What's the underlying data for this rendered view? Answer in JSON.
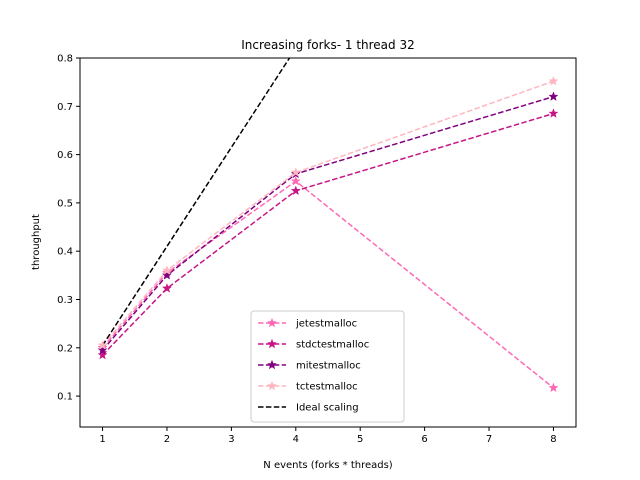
{
  "chart_data": {
    "type": "line",
    "title": "Increasing forks- 1 thread 32",
    "xlabel": "N events (forks * threads)",
    "ylabel": "throughput",
    "xlim": [
      0.65,
      8.35
    ],
    "ylim": [
      0.036,
      0.8
    ],
    "xticks": [
      1,
      2,
      3,
      4,
      5,
      6,
      7,
      8
    ],
    "yticks": [
      0.1,
      0.2,
      0.3,
      0.4,
      0.5,
      0.6,
      0.7,
      0.8
    ],
    "grid": false,
    "legend_position": "lower-center",
    "x": [
      1,
      2,
      4,
      8
    ],
    "series": [
      {
        "name": "jetestmalloc",
        "color": "#ff69b4",
        "marker": "star",
        "linestyle": "dashed",
        "values": [
          0.2,
          0.355,
          0.545,
          0.117
        ]
      },
      {
        "name": "stdctestmalloc",
        "color": "#c71585",
        "marker": "star",
        "linestyle": "dashed",
        "values": [
          0.185,
          0.323,
          0.525,
          0.685
        ]
      },
      {
        "name": "mitestmalloc",
        "color": "#800080",
        "marker": "star",
        "linestyle": "dashed",
        "values": [
          0.195,
          0.35,
          0.56,
          0.72
        ]
      },
      {
        "name": "tctestmalloc",
        "color": "#ffb6c1",
        "marker": "star",
        "linestyle": "dashed",
        "values": [
          0.205,
          0.36,
          0.563,
          0.752
        ]
      },
      {
        "name": "Ideal scaling",
        "color": "#000000",
        "marker": "none",
        "linestyle": "dashed",
        "x": [
          1,
          2,
          4
        ],
        "values": [
          0.205,
          0.41,
          0.82
        ]
      }
    ]
  }
}
